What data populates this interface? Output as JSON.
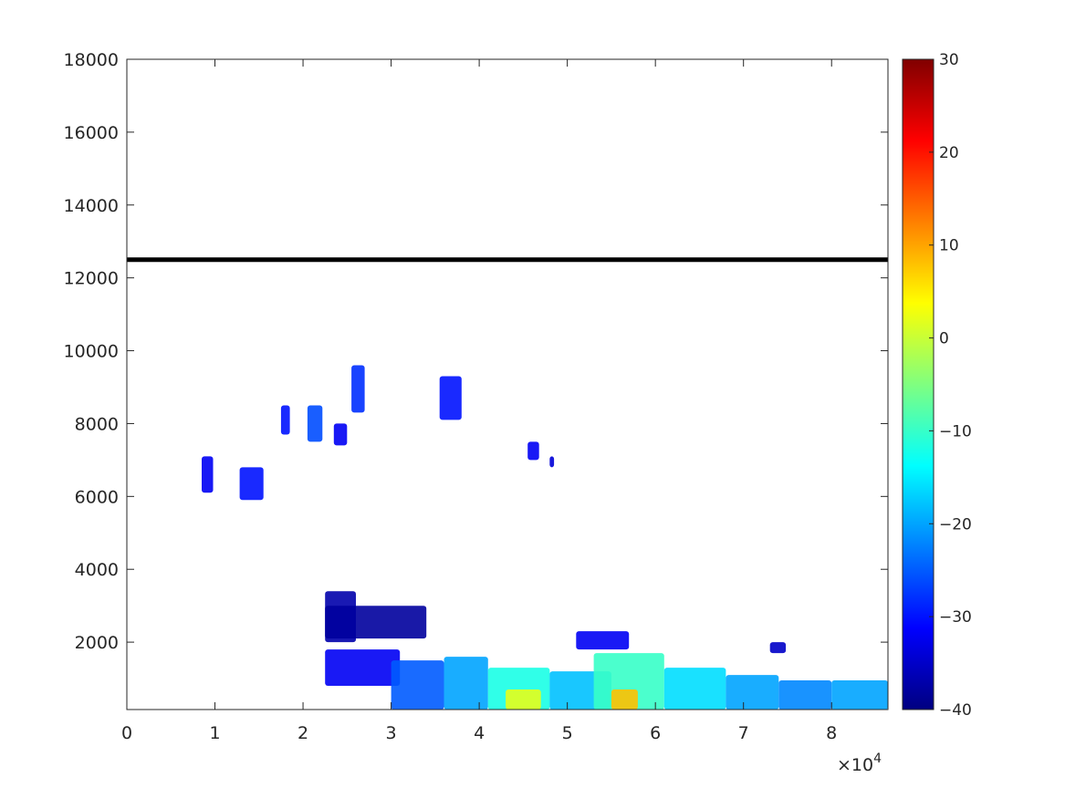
{
  "chart_data": {
    "type": "heatmap",
    "title": "",
    "xlabel": "",
    "ylabel": "",
    "xlim": [
      0,
      86400
    ],
    "ylim": [
      150,
      18000
    ],
    "x_ticks": [
      0,
      10000,
      20000,
      30000,
      40000,
      50000,
      60000,
      70000,
      80000
    ],
    "x_tick_labels": [
      "0",
      "1",
      "2",
      "3",
      "4",
      "5",
      "6",
      "7",
      "8"
    ],
    "x_exponent_base": "×10",
    "x_exponent_power": "4",
    "y_ticks": [
      2000,
      4000,
      6000,
      8000,
      10000,
      12000,
      14000,
      16000,
      18000
    ],
    "y_tick_labels": [
      "2000",
      "4000",
      "6000",
      "8000",
      "10000",
      "12000",
      "14000",
      "16000",
      "18000"
    ],
    "grid": false,
    "colormap": "jet",
    "colorbar": {
      "limits": [
        -40,
        30
      ],
      "ticks": [
        -40,
        -30,
        -20,
        -10,
        0,
        10,
        20,
        30
      ],
      "tick_labels": [
        "−40",
        "−30",
        "−20",
        "−10",
        "0",
        "10",
        "20",
        "30"
      ]
    },
    "reference_line": {
      "y": 12500,
      "color": "#000000"
    },
    "echo_regions": [
      {
        "x": [
          8500,
          9800
        ],
        "y": [
          6100,
          7100
        ],
        "value": -32
      },
      {
        "x": [
          12800,
          15500
        ],
        "y": [
          5900,
          6800
        ],
        "value": -30
      },
      {
        "x": [
          17500,
          18500
        ],
        "y": [
          7700,
          8500
        ],
        "value": -30
      },
      {
        "x": [
          20500,
          22200
        ],
        "y": [
          7500,
          8500
        ],
        "value": -26
      },
      {
        "x": [
          23500,
          25000
        ],
        "y": [
          7400,
          8000
        ],
        "value": -32
      },
      {
        "x": [
          25500,
          27000
        ],
        "y": [
          8300,
          9600
        ],
        "value": -28
      },
      {
        "x": [
          35500,
          38000
        ],
        "y": [
          8100,
          9300
        ],
        "value": -30
      },
      {
        "x": [
          45500,
          46800
        ],
        "y": [
          7000,
          7500
        ],
        "value": -32
      },
      {
        "x": [
          48000,
          48500
        ],
        "y": [
          6800,
          7100
        ],
        "value": -34
      },
      {
        "x": [
          22500,
          26000
        ],
        "y": [
          2000,
          3400
        ],
        "value": -37
      },
      {
        "x": [
          22500,
          34000
        ],
        "y": [
          2100,
          3000
        ],
        "value": -38
      },
      {
        "x": [
          22500,
          31000
        ],
        "y": [
          800,
          1800
        ],
        "value": -32
      },
      {
        "x": [
          30000,
          36000
        ],
        "y": [
          150,
          1500
        ],
        "value": -25
      },
      {
        "x": [
          36000,
          41000
        ],
        "y": [
          150,
          1600
        ],
        "value": -20
      },
      {
        "x": [
          41000,
          48000
        ],
        "y": [
          150,
          1300
        ],
        "value": -12
      },
      {
        "x": [
          43000,
          47000
        ],
        "y": [
          150,
          700
        ],
        "value": 2
      },
      {
        "x": [
          48000,
          55000
        ],
        "y": [
          150,
          1200
        ],
        "value": -18
      },
      {
        "x": [
          53000,
          61000
        ],
        "y": [
          150,
          1700
        ],
        "value": -10
      },
      {
        "x": [
          55000,
          58000
        ],
        "y": [
          150,
          700
        ],
        "value": 8
      },
      {
        "x": [
          51000,
          57000
        ],
        "y": [
          1800,
          2300
        ],
        "value": -32
      },
      {
        "x": [
          61000,
          68000
        ],
        "y": [
          150,
          1300
        ],
        "value": -16
      },
      {
        "x": [
          68000,
          74000
        ],
        "y": [
          150,
          1100
        ],
        "value": -20
      },
      {
        "x": [
          74000,
          80000
        ],
        "y": [
          150,
          950
        ],
        "value": -22
      },
      {
        "x": [
          80000,
          86400
        ],
        "y": [
          150,
          950
        ],
        "value": -20
      },
      {
        "x": [
          73000,
          74800
        ],
        "y": [
          1700,
          2000
        ],
        "value": -35
      }
    ]
  }
}
